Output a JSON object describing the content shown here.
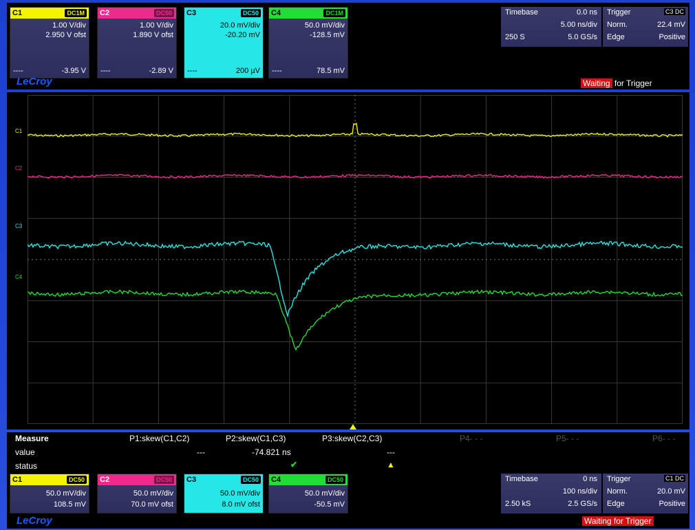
{
  "top": {
    "channels": [
      {
        "name": "C1",
        "coupling": "DC1M",
        "vdiv": "1.00 V/div",
        "ofst": "2.950 V ofst",
        "dash": "----",
        "value": "-3.95 V",
        "color": "#f3f300",
        "text_color": "#000"
      },
      {
        "name": "C2",
        "coupling": "DC50",
        "vdiv": "1.00 V/div",
        "ofst": "1.890 V ofst",
        "dash": "----",
        "value": "-2.89 V",
        "color": "#ee2a8c",
        "text_color": "#fff"
      },
      {
        "name": "C3",
        "coupling": "DC50",
        "vdiv": "20.0 mV/div",
        "ofst": "-20.20 mV",
        "dash": "----",
        "value": "200 µV",
        "color": "#27e6e6",
        "text_color": "#000"
      },
      {
        "name": "C4",
        "coupling": "DC1M",
        "vdiv": "50.0 mV/div",
        "ofst": "-128.5 mV",
        "dash": "----",
        "value": "78.5 mV",
        "color": "#22dd33",
        "text_color": "#000"
      }
    ],
    "timebase": {
      "label": "Timebase",
      "delay": "0.0 ns",
      "tdiv": "5.00 ns/div",
      "samples": "250 S",
      "rate": "5.0 GS/s"
    },
    "trigger": {
      "label": "Trigger",
      "chan": "C3 DC",
      "mode": "Norm.",
      "level": "22.4 mV",
      "type": "Edge",
      "slope": "Positive"
    },
    "logo": "LeCroy",
    "status_red": "Waiting",
    "status_rest": " for Trigger"
  },
  "trace_labels": [
    "C1",
    "C2",
    "C3",
    "C4"
  ],
  "measure": {
    "title": "Measure",
    "rows": [
      "value",
      "status"
    ],
    "params": [
      {
        "name": "P1:skew(C1,C2)",
        "value": "---",
        "status": ""
      },
      {
        "name": "P2:skew(C1,C3)",
        "value": "-74.821 ns",
        "status": "✔"
      },
      {
        "name": "P3:skew(C2,C3)",
        "value": "---",
        "status": "▲"
      }
    ],
    "empty": [
      "P4- - -",
      "P5- - -",
      "P6- - -"
    ]
  },
  "bottom": {
    "channels": [
      {
        "name": "C1",
        "coupling": "DC50",
        "vdiv": "50.0 mV/div",
        "ofst": "108.5 mV",
        "color": "#f3f300",
        "text_color": "#000"
      },
      {
        "name": "C2",
        "coupling": "DC50",
        "vdiv": "50.0 mV/div",
        "ofst": "70.0 mV ofst",
        "color": "#ee2a8c",
        "text_color": "#fff"
      },
      {
        "name": "C3",
        "coupling": "DC50",
        "vdiv": "50.0 mV/div",
        "ofst": "8.0 mV ofst",
        "color": "#27e6e6",
        "text_color": "#000"
      },
      {
        "name": "C4",
        "coupling": "DC50",
        "vdiv": "50.0 mV/div",
        "ofst": "-50.5 mV",
        "color": "#22dd33",
        "text_color": "#000"
      }
    ],
    "timebase": {
      "label": "Timebase",
      "delay": "0 ns",
      "tdiv": "100 ns/div",
      "samples": "2.50 kS",
      "rate": "2.5 GS/s"
    },
    "trigger": {
      "label": "Trigger",
      "chan": "C1 DC",
      "mode": "Norm.",
      "level": "20.0 mV",
      "type": "Edge",
      "slope": "Positive"
    },
    "logo": "LeCroy",
    "status": "Waiting for Trigger"
  },
  "colors": {
    "c1": "#f3f300",
    "c2": "#ee2a8c",
    "c3": "#27e6e6",
    "c4": "#22dd33",
    "grid": "#3a3a3a"
  }
}
